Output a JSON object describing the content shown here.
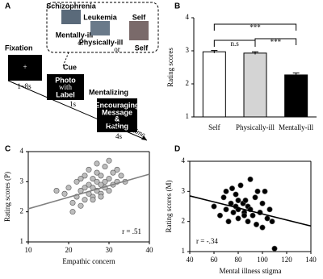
{
  "panel_a": {
    "panel": "A",
    "fixation": {
      "title": "Fixation",
      "symbol": "+",
      "duration": "1~8s"
    },
    "cue": {
      "title": "Cue",
      "lines": [
        "Photo",
        "with",
        "Label"
      ],
      "duration": "1s"
    },
    "mentalizing": {
      "title": "Mentalizing",
      "lines": [
        "Encouraging",
        "Message",
        "&",
        "Rating"
      ],
      "duration": "4s"
    },
    "time": "time",
    "examples": [
      {
        "photo_label": "Schizophrenia",
        "name": "Mentally-ill"
      },
      {
        "photo_label": "Leukemia",
        "name": "Physically-ill"
      },
      {
        "photo_label": "Self",
        "name": "Self"
      }
    ],
    "separators": [
      "or",
      "or"
    ]
  },
  "chart_data": [
    {
      "panel": "B",
      "type": "bar",
      "ylabel": "Rating scores",
      "categories": [
        "Self",
        "Physically-ill",
        "Mentally-ill"
      ],
      "values": [
        2.97,
        2.93,
        2.27
      ],
      "errors": [
        0.04,
        0.04,
        0.06
      ],
      "colors": [
        "#ffffff",
        "#d4d4d4",
        "#000000"
      ],
      "ylim": [
        1,
        4
      ],
      "yticks": [
        1,
        2,
        3,
        4
      ],
      "annotations": [
        "n.s",
        "***",
        "***"
      ]
    },
    {
      "panel": "C",
      "type": "scatter",
      "xlabel": "Empathic concern",
      "ylabel": "Rating scores (P)",
      "annotation": "r = .51",
      "color": "#bdbdbd",
      "line_color": "#808080",
      "x": [
        17,
        19,
        20,
        21,
        22,
        22,
        23,
        23,
        24,
        24,
        24,
        25,
        25,
        25,
        26,
        26,
        26,
        27,
        27,
        27,
        27,
        28,
        28,
        28,
        29,
        29,
        29,
        30,
        30,
        30,
        31,
        31,
        32,
        32,
        33,
        34,
        21,
        23,
        26,
        28
      ],
      "y": [
        2.7,
        2.6,
        2.8,
        2.0,
        2.5,
        3.0,
        2.2,
        2.7,
        2.4,
        2.8,
        3.2,
        2.6,
        2.9,
        3.4,
        2.5,
        2.8,
        3.1,
        2.7,
        3.0,
        3.3,
        3.6,
        2.6,
        2.9,
        3.2,
        2.8,
        3.0,
        3.5,
        2.7,
        3.1,
        3.7,
        2.9,
        3.3,
        3.0,
        3.4,
        3.2,
        3.0,
        2.3,
        3.1,
        2.4,
        2.5
      ],
      "fit_line": {
        "x": [
          10,
          40
        ],
        "y": [
          2.1,
          3.25
        ]
      },
      "xlim": [
        10,
        40
      ],
      "xticks": [
        10,
        20,
        30,
        40
      ],
      "ylim": [
        1,
        4
      ],
      "yticks": [
        1,
        2,
        3,
        4
      ]
    },
    {
      "panel": "D",
      "type": "scatter",
      "xlabel": "Mental illness stigma",
      "ylabel": "Rating scores (M)",
      "annotation": "r = -.34",
      "color": "#000000",
      "line_color": "#000000",
      "x": [
        60,
        65,
        68,
        70,
        72,
        74,
        75,
        76,
        78,
        78,
        80,
        80,
        82,
        84,
        85,
        86,
        88,
        88,
        90,
        90,
        92,
        94,
        95,
        96,
        98,
        100,
        100,
        102,
        104,
        106,
        108,
        110,
        80,
        70,
        85
      ],
      "y": [
        2.5,
        2.2,
        2.8,
        2.4,
        2.0,
        2.6,
        3.1,
        2.3,
        2.5,
        2.9,
        2.1,
        2.4,
        3.2,
        2.6,
        2.3,
        2.7,
        2.0,
        2.5,
        3.4,
        2.4,
        2.2,
        2.8,
        1.9,
        3.0,
        2.3,
        1.8,
        2.6,
        3.0,
        2.1,
        2.4,
        2.0,
        1.1,
        2.7,
        3.0,
        2.2
      ],
      "fit_line": {
        "x": [
          40,
          140
        ],
        "y": [
          2.85,
          1.85
        ]
      },
      "xlim": [
        40,
        140
      ],
      "xticks": [
        40,
        60,
        80,
        100,
        120,
        140
      ],
      "ylim": [
        1,
        4
      ],
      "yticks": [
        1,
        2,
        3,
        4
      ]
    }
  ]
}
